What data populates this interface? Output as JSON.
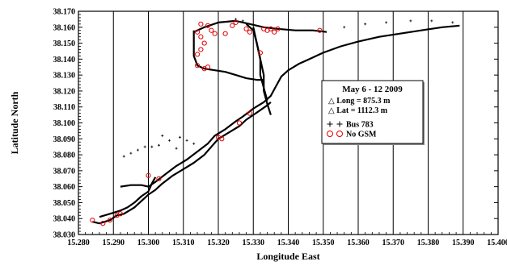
{
  "chart_data": {
    "type": "scatter",
    "title": "",
    "xlabel": "Longitude East",
    "ylabel": "Latitude North",
    "xlim": [
      15.28,
      15.4
    ],
    "ylim": [
      38.03,
      38.17
    ],
    "x_ticks": [
      "15.280",
      "15.290",
      "15.300",
      "15.310",
      "15.320",
      "15.330",
      "15.340",
      "15.350",
      "15.360",
      "15.370",
      "15.380",
      "15.390",
      "15.400"
    ],
    "y_ticks": [
      "38.030",
      "38.040",
      "38.050",
      "38.060",
      "38.070",
      "38.080",
      "38.090",
      "38.100",
      "38.110",
      "38.120",
      "38.130",
      "38.140",
      "38.150",
      "38.160",
      "38.170"
    ],
    "grid": "vertical",
    "legend_position": "center-right",
    "legend": {
      "title": "May 6 - 12  2009",
      "lines": [
        "△ Long =   875.3 m",
        "△ Lat    = 1112.3 m"
      ],
      "entries": [
        {
          "marker": "+",
          "label": "Bus 783"
        },
        {
          "marker": "o",
          "label": "No GSM"
        }
      ]
    },
    "series": [
      {
        "name": "Bus 783",
        "marker": "+",
        "color": "#000000",
        "paths": [
          [
            [
              15.284,
              38.038
            ],
            [
              15.286,
              38.037
            ],
            [
              15.289,
              38.039
            ],
            [
              15.291,
              38.042
            ],
            [
              15.293,
              38.043
            ],
            [
              15.296,
              38.047
            ],
            [
              15.298,
              38.051
            ],
            [
              15.3,
              38.055
            ],
            [
              15.302,
              38.058
            ],
            [
              15.304,
              38.062
            ],
            [
              15.307,
              38.067
            ],
            [
              15.31,
              38.071
            ],
            [
              15.313,
              38.075
            ],
            [
              15.316,
              38.08
            ],
            [
              15.318,
              38.085
            ],
            [
              15.32,
              38.09
            ],
            [
              15.323,
              38.094
            ],
            [
              15.326,
              38.098
            ],
            [
              15.328,
              38.102
            ],
            [
              15.33,
              38.105
            ],
            [
              15.332,
              38.108
            ],
            [
              15.334,
              38.111
            ],
            [
              15.335,
              38.113
            ]
          ],
          [
            [
              15.292,
              38.06
            ],
            [
              15.295,
              38.061
            ],
            [
              15.298,
              38.061
            ],
            [
              15.3,
              38.06
            ],
            [
              15.302,
              38.063
            ],
            [
              15.305,
              38.068
            ],
            [
              15.308,
              38.073
            ],
            [
              15.311,
              38.077
            ],
            [
              15.314,
              38.082
            ],
            [
              15.317,
              38.087
            ],
            [
              15.319,
              38.092
            ],
            [
              15.322,
              38.096
            ],
            [
              15.325,
              38.101
            ],
            [
              15.327,
              38.104
            ],
            [
              15.33,
              38.109
            ],
            [
              15.333,
              38.113
            ],
            [
              15.335,
              38.117
            ],
            [
              15.336,
              38.121
            ],
            [
              15.337,
              38.125
            ],
            [
              15.338,
              38.129
            ],
            [
              15.34,
              38.133
            ],
            [
              15.343,
              38.137
            ],
            [
              15.346,
              38.14
            ],
            [
              15.35,
              38.144
            ],
            [
              15.355,
              38.148
            ],
            [
              15.36,
              38.151
            ],
            [
              15.366,
              38.154
            ],
            [
              15.372,
              38.156
            ],
            [
              15.378,
              38.158
            ],
            [
              15.384,
              38.16
            ],
            [
              15.389,
              38.161
            ]
          ],
          [
            [
              15.328,
              38.162
            ],
            [
              15.33,
              38.158
            ],
            [
              15.331,
              38.15
            ],
            [
              15.332,
              38.14
            ],
            [
              15.333,
              38.13
            ],
            [
              15.333,
              38.12
            ],
            [
              15.334,
              38.112
            ],
            [
              15.335,
              38.105
            ]
          ],
          [
            [
              15.33,
              38.16
            ],
            [
              15.331,
              38.15
            ],
            [
              15.332,
              38.14
            ],
            [
              15.332,
              38.13
            ],
            [
              15.333,
              38.122
            ],
            [
              15.334,
              38.114
            ]
          ],
          [
            [
              15.313,
              38.158
            ],
            [
              15.313,
              38.15
            ],
            [
              15.313,
              38.142
            ],
            [
              15.314,
              38.136
            ],
            [
              15.316,
              38.134
            ],
            [
              15.319,
              38.133
            ],
            [
              15.322,
              38.132
            ],
            [
              15.325,
              38.13
            ],
            [
              15.328,
              38.128
            ],
            [
              15.331,
              38.127
            ],
            [
              15.333,
              38.127
            ]
          ],
          [
            [
              15.313,
              38.157
            ],
            [
              15.316,
              38.16
            ],
            [
              15.32,
              38.163
            ],
            [
              15.325,
              38.164
            ],
            [
              15.329,
              38.162
            ],
            [
              15.333,
              38.16
            ],
            [
              15.337,
              38.159
            ],
            [
              15.342,
              38.158
            ],
            [
              15.347,
              38.158
            ],
            [
              15.351,
              38.157
            ]
          ],
          [
            [
              15.286,
              38.041
            ],
            [
              15.289,
              38.043
            ],
            [
              15.292,
              38.045
            ],
            [
              15.294,
              38.047
            ],
            [
              15.296,
              38.05
            ],
            [
              15.298,
              38.054
            ],
            [
              15.3,
              38.057
            ],
            [
              15.301,
              38.062
            ],
            [
              15.302,
              38.066
            ]
          ]
        ],
        "scatter": [
          [
            15.293,
            38.079
          ],
          [
            15.295,
            38.081
          ],
          [
            15.297,
            38.083
          ],
          [
            15.299,
            38.085
          ],
          [
            15.301,
            38.085
          ],
          [
            15.303,
            38.086
          ],
          [
            15.306,
            38.089
          ],
          [
            15.309,
            38.091
          ],
          [
            15.311,
            38.089
          ],
          [
            15.313,
            38.087
          ],
          [
            15.304,
            38.092
          ],
          [
            15.308,
            38.084
          ],
          [
            15.356,
            38.16
          ],
          [
            15.362,
            38.162
          ],
          [
            15.368,
            38.163
          ],
          [
            15.375,
            38.164
          ],
          [
            15.381,
            38.164
          ],
          [
            15.387,
            38.163
          ],
          [
            15.325,
            38.165
          ],
          [
            15.327,
            38.164
          ]
        ]
      },
      {
        "name": "No GSM",
        "marker": "o",
        "color": "#e00000",
        "points": [
          [
            15.284,
            38.039
          ],
          [
            15.287,
            38.037
          ],
          [
            15.289,
            38.039
          ],
          [
            15.291,
            38.042
          ],
          [
            15.292,
            38.043
          ],
          [
            15.3,
            38.067
          ],
          [
            15.303,
            38.065
          ],
          [
            15.314,
            38.157
          ],
          [
            15.315,
            38.154
          ],
          [
            15.316,
            38.15
          ],
          [
            15.315,
            38.146
          ],
          [
            15.314,
            38.143
          ],
          [
            15.314,
            38.136
          ],
          [
            15.316,
            38.134
          ],
          [
            15.317,
            38.135
          ],
          [
            15.315,
            38.162
          ],
          [
            15.317,
            38.161
          ],
          [
            15.318,
            38.158
          ],
          [
            15.319,
            38.156
          ],
          [
            15.322,
            38.156
          ],
          [
            15.324,
            38.161
          ],
          [
            15.325,
            38.163
          ],
          [
            15.328,
            38.159
          ],
          [
            15.329,
            38.157
          ],
          [
            15.333,
            38.159
          ],
          [
            15.334,
            38.158
          ],
          [
            15.335,
            38.159
          ],
          [
            15.336,
            38.157
          ],
          [
            15.337,
            38.159
          ],
          [
            15.349,
            38.158
          ],
          [
            15.32,
            38.091
          ],
          [
            15.321,
            38.09
          ],
          [
            15.326,
            38.1
          ],
          [
            15.329,
            38.106
          ],
          [
            15.332,
            38.144
          ]
        ]
      }
    ]
  }
}
